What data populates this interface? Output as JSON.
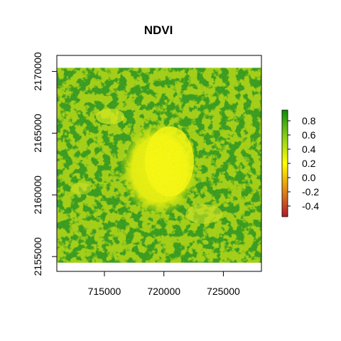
{
  "title": "NDVI",
  "map": {
    "x_ticks": [
      {
        "value": 715000,
        "label": "715000"
      },
      {
        "value": 720000,
        "label": "720000"
      },
      {
        "value": 725000,
        "label": "725000"
      }
    ],
    "y_ticks": [
      {
        "value": 2155000,
        "label": "2155000"
      },
      {
        "value": 2160000,
        "label": "2160000"
      },
      {
        "value": 2165000,
        "label": "2165000"
      },
      {
        "value": 2170000,
        "label": "2170000"
      }
    ],
    "x_range": [
      711000,
      728200
    ],
    "y_range": [
      2153800,
      2171300
    ],
    "raster_extent": {
      "x": [
        711000,
        728200
      ],
      "y": [
        2154500,
        2170300
      ]
    }
  },
  "legend": {
    "ticks": [
      {
        "value": 0.8,
        "label": "0.8"
      },
      {
        "value": 0.6,
        "label": "0.6"
      },
      {
        "value": 0.4,
        "label": "0.4"
      },
      {
        "value": 0.2,
        "label": "0.2"
      },
      {
        "value": 0.0,
        "label": "0.0"
      },
      {
        "value": -0.2,
        "label": "-0.2"
      },
      {
        "value": -0.4,
        "label": "-0.4"
      }
    ],
    "range": [
      -0.55,
      0.95
    ],
    "colors": [
      "#b2182b",
      "#e08a18",
      "#ffff00",
      "#8ccf1c",
      "#0f8c0f"
    ]
  },
  "colors": {
    "low": "#b2182b",
    "mid": "#ffff00",
    "high": "#0f8c0f"
  }
}
